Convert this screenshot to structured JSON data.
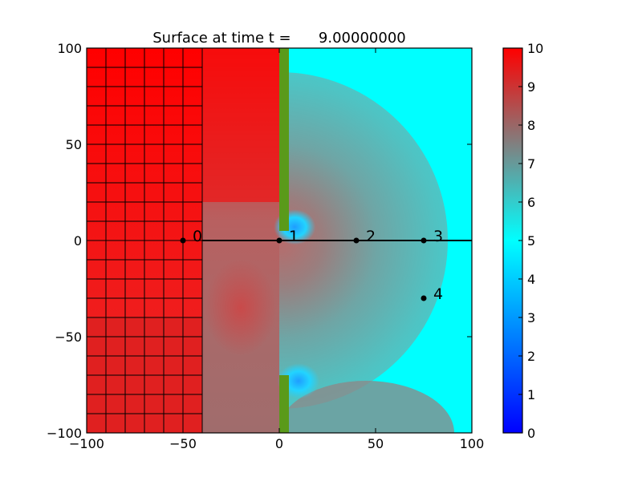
{
  "chart_data": [
    {
      "type": "heatmap",
      "title": "Surface at time t =      9.00000000",
      "xlabel": "",
      "ylabel": "",
      "xlim": [
        -100,
        100
      ],
      "ylim": [
        -100,
        100
      ],
      "x_ticks": [
        {
          "value": -100,
          "label": "−100"
        },
        {
          "value": -50,
          "label": "−50"
        },
        {
          "value": 0,
          "label": "0"
        },
        {
          "value": 50,
          "label": "50"
        },
        {
          "value": 100,
          "label": "100"
        }
      ],
      "y_ticks": [
        {
          "value": 100,
          "label": "100"
        },
        {
          "value": 50,
          "label": "50"
        },
        {
          "value": 0,
          "label": "0"
        },
        {
          "value": -50,
          "label": "−50"
        },
        {
          "value": -100,
          "label": "−100"
        }
      ],
      "color_range": [
        0,
        10
      ],
      "colorscale": [
        {
          "v": 0,
          "color": "#0000ff"
        },
        {
          "v": 5,
          "color": "#00ffff"
        },
        {
          "v": 7.5,
          "color": "#808080"
        },
        {
          "v": 10,
          "color": "#ff0000"
        }
      ],
      "coarse_grid_region": {
        "x": [
          -100,
          -40
        ],
        "y": [
          -100,
          100
        ],
        "cell_size": 10
      },
      "wall": {
        "x": [
          0,
          5
        ],
        "segments": [
          [
            5,
            100
          ],
          [
            -100,
            -70
          ]
        ],
        "color": "#5a9a1a"
      },
      "transect": {
        "y": 0,
        "x": [
          -40,
          100
        ]
      },
      "gauges": [
        {
          "id": "0",
          "x": -50,
          "y": 0
        },
        {
          "id": "1",
          "x": 0,
          "y": 0
        },
        {
          "id": "2",
          "x": 40,
          "y": 0
        },
        {
          "id": "3",
          "x": 75,
          "y": 0
        },
        {
          "id": "4",
          "x": 75,
          "y": -30
        }
      ]
    },
    {
      "type": "colorbar",
      "ylim": [
        0,
        10
      ],
      "ticks": [
        0,
        1,
        2,
        3,
        4,
        5,
        6,
        7,
        8,
        9,
        10
      ],
      "tick_labels": [
        "0",
        "1",
        "2",
        "3",
        "4",
        "5",
        "6",
        "7",
        "8",
        "9",
        "10"
      ]
    }
  ]
}
